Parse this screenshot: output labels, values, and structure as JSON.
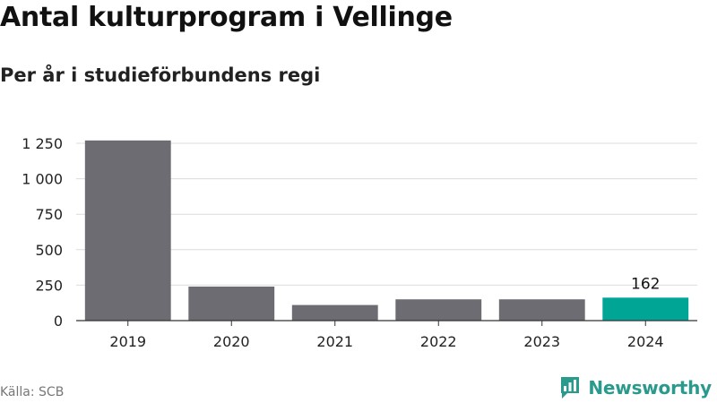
{
  "title": "Antal kulturprogram i Vellinge",
  "subtitle": "Per år i studieförbundens regi",
  "source": "Källa: SCB",
  "brand": {
    "name": "Newsworthy",
    "logo_icon": "newsworthy-logo-icon"
  },
  "colors": {
    "bar": "#6d6c72",
    "highlight": "#00a596",
    "grid": "#dcdcdc",
    "axis": "#333333"
  },
  "chart_data": {
    "type": "bar",
    "title": "Antal kulturprogram i Vellinge",
    "subtitle": "Per år i studieförbundens regi",
    "categories": [
      "2019",
      "2020",
      "2021",
      "2022",
      "2023",
      "2024"
    ],
    "values": [
      1270,
      240,
      110,
      150,
      150,
      162
    ],
    "highlight_index": 5,
    "data_labels": [
      {
        "index": 5,
        "text": "162"
      }
    ],
    "ylim": [
      0,
      1250
    ],
    "yticks": [
      0,
      250,
      500,
      750,
      1000,
      1250
    ],
    "ytick_labels": [
      "0",
      "250",
      "500",
      "750",
      "1 000",
      "1 250"
    ],
    "grid": true,
    "legend": "none"
  }
}
